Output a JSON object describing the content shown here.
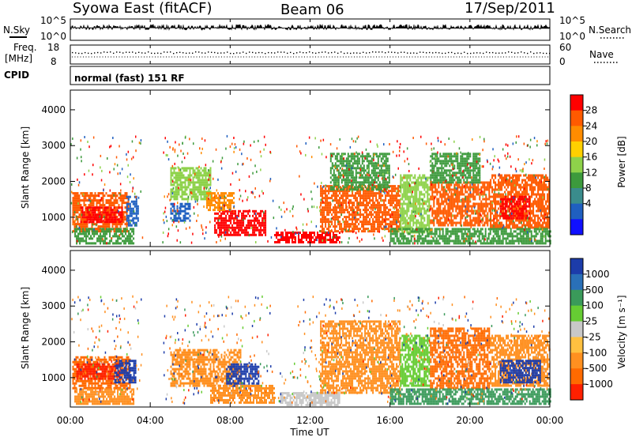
{
  "header": {
    "station": "Syowa East (fitACF)",
    "beam": "Beam 06",
    "date": "17/Sep/2011"
  },
  "noise_panel": {
    "left_label": "N.Sky",
    "right_label": "N.Search",
    "left_ticks": [
      "10^5",
      "10^0"
    ],
    "right_ticks": [
      "10^5",
      "10^0"
    ]
  },
  "freq_panel": {
    "left_label_1": "Freq.",
    "left_label_2": "[MHz]",
    "right_label": "Nave",
    "left_ticks": [
      "18",
      "8"
    ],
    "right_ticks": [
      "60",
      "0"
    ]
  },
  "cpid_panel": {
    "label": "CPID",
    "text": "normal (fast) 151 RF"
  },
  "x_axis": {
    "label": "Time UT",
    "ticks": [
      "00:00",
      "04:00",
      "08:00",
      "12:00",
      "16:00",
      "20:00",
      "00:00"
    ]
  },
  "power_panel": {
    "ylabel": "Slant Range [km]",
    "yticks": [
      "1000",
      "2000",
      "3000",
      "4000"
    ],
    "colorbar_label": "Power [dB]",
    "colorbar_ticks": [
      "28",
      "24",
      "20",
      "16",
      "12",
      "8",
      "4"
    ],
    "colors": [
      "#ff0000",
      "#ff5a00",
      "#ff8c00",
      "#ffd000",
      "#8ed24a",
      "#3c9a3c",
      "#3a8c8c",
      "#1f5fc0",
      "#1010ff"
    ]
  },
  "velocity_panel": {
    "ylabel": "Slant Range [km]",
    "yticks": [
      "1000",
      "2000",
      "3000",
      "4000"
    ],
    "colorbar_label": "Velocity  [m s⁻¹]",
    "colorbar_ticks": [
      "1000",
      "500",
      "100",
      "25",
      "-25",
      "-100",
      "-500",
      "-1000"
    ],
    "colors": [
      "#1c3caa",
      "#2a70b8",
      "#3a9a5a",
      "#66cc33",
      "#c8c8c8",
      "#ffc040",
      "#ff9020",
      "#ff6a00",
      "#ff2000"
    ]
  },
  "chart_data": {
    "type": "heatmap",
    "x_range_hours": [
      0,
      24
    ],
    "y_range_km": [
      180,
      4550
    ],
    "power_regions": [
      {
        "t0": 0.1,
        "t1": 2.9,
        "r0": 600,
        "r1": 1700,
        "c": "#ff5a00"
      },
      {
        "t0": 0.5,
        "t1": 2.6,
        "r0": 900,
        "r1": 1300,
        "c": "#ff0000"
      },
      {
        "t0": 0.2,
        "t1": 3.2,
        "r0": 250,
        "r1": 700,
        "c": "#3c9a3c"
      },
      {
        "t0": 2.8,
        "t1": 3.4,
        "r0": 800,
        "r1": 1600,
        "c": "#1f5fc0"
      },
      {
        "t0": 5.0,
        "t1": 7.0,
        "r0": 1500,
        "r1": 2400,
        "c": "#8ed24a"
      },
      {
        "t0": 5.0,
        "t1": 6.0,
        "r0": 900,
        "r1": 1400,
        "c": "#1f5fc0"
      },
      {
        "t0": 7.2,
        "t1": 9.8,
        "r0": 500,
        "r1": 1200,
        "c": "#ff0000"
      },
      {
        "t0": 6.8,
        "t1": 8.2,
        "r0": 1200,
        "r1": 1700,
        "c": "#ff8c00"
      },
      {
        "t0": 10.2,
        "t1": 13.5,
        "r0": 300,
        "r1": 600,
        "c": "#ff0000"
      },
      {
        "t0": 12.5,
        "t1": 16.5,
        "r0": 600,
        "r1": 1900,
        "c": "#ff5a00"
      },
      {
        "t0": 13.0,
        "t1": 16.0,
        "r0": 1800,
        "r1": 2800,
        "c": "#3c9a3c"
      },
      {
        "t0": 16.5,
        "t1": 18.0,
        "r0": 600,
        "r1": 2200,
        "c": "#8ed24a"
      },
      {
        "t0": 18.0,
        "t1": 21.0,
        "r0": 800,
        "r1": 2000,
        "c": "#ff5a00"
      },
      {
        "t0": 18.0,
        "t1": 20.5,
        "r0": 2000,
        "r1": 2800,
        "c": "#3c9a3c"
      },
      {
        "t0": 21.0,
        "t1": 24.0,
        "r0": 700,
        "r1": 2200,
        "c": "#ff5a00"
      },
      {
        "t0": 21.5,
        "t1": 23.0,
        "r0": 1000,
        "r1": 1600,
        "c": "#ff0000"
      },
      {
        "t0": 16.0,
        "t1": 24.0,
        "r0": 250,
        "r1": 700,
        "c": "#3c9a3c"
      }
    ],
    "velocity_regions": [
      {
        "t0": 0.1,
        "t1": 3.0,
        "r0": 700,
        "r1": 1600,
        "c": "#ff6a00"
      },
      {
        "t0": 0.3,
        "t1": 2.5,
        "r0": 1000,
        "r1": 1400,
        "c": "#ff2000"
      },
      {
        "t0": 2.2,
        "t1": 3.3,
        "r0": 900,
        "r1": 1500,
        "c": "#1c3caa"
      },
      {
        "t0": 0.2,
        "t1": 3.2,
        "r0": 250,
        "r1": 700,
        "c": "#ff9020"
      },
      {
        "t0": 5.0,
        "t1": 8.5,
        "r0": 800,
        "r1": 1800,
        "c": "#ff9020"
      },
      {
        "t0": 7.8,
        "t1": 9.4,
        "r0": 800,
        "r1": 1400,
        "c": "#1c3caa"
      },
      {
        "t0": 7.0,
        "t1": 10.2,
        "r0": 300,
        "r1": 800,
        "c": "#ff9020"
      },
      {
        "t0": 10.5,
        "t1": 13.5,
        "r0": 250,
        "r1": 600,
        "c": "#c8c8c8"
      },
      {
        "t0": 12.5,
        "t1": 16.5,
        "r0": 600,
        "r1": 2600,
        "c": "#ff9020"
      },
      {
        "t0": 16.5,
        "t1": 18.0,
        "r0": 800,
        "r1": 2200,
        "c": "#66cc33"
      },
      {
        "t0": 18.0,
        "t1": 21.0,
        "r0": 700,
        "r1": 2400,
        "c": "#ff6a00"
      },
      {
        "t0": 21.0,
        "t1": 24.0,
        "r0": 800,
        "r1": 2200,
        "c": "#ff9020"
      },
      {
        "t0": 21.5,
        "t1": 23.5,
        "r0": 900,
        "r1": 1500,
        "c": "#1c3caa"
      },
      {
        "t0": 16.0,
        "t1": 24.0,
        "r0": 250,
        "r1": 700,
        "c": "#3a9a5a"
      }
    ]
  }
}
